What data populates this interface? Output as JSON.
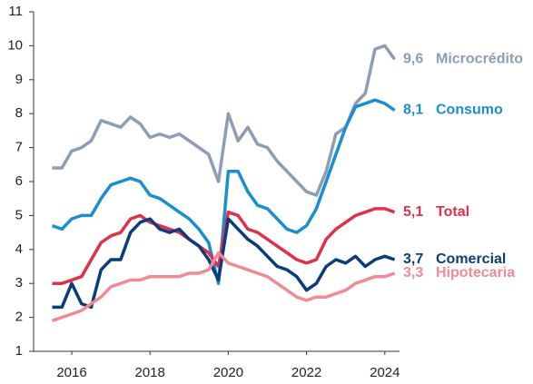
{
  "chart_data": {
    "type": "line",
    "x": [
      2015.5,
      2015.75,
      2016,
      2016.25,
      2016.5,
      2016.75,
      2017,
      2017.25,
      2017.5,
      2017.75,
      2018,
      2018.25,
      2018.5,
      2018.75,
      2019,
      2019.25,
      2019.5,
      2019.75,
      2020,
      2020.25,
      2020.5,
      2020.75,
      2021,
      2021.25,
      2021.5,
      2021.75,
      2022,
      2022.25,
      2022.5,
      2022.75,
      2023,
      2023.25,
      2023.5,
      2023.75,
      2024,
      2024.25
    ],
    "xlim": [
      2014.6,
      2024.6
    ],
    "xticks": [
      2016,
      2018,
      2020,
      2022,
      2024
    ],
    "ylim": [
      1,
      11
    ],
    "yticks": [
      1,
      2,
      3,
      4,
      5,
      6,
      7,
      8,
      9,
      10,
      11
    ],
    "series": [
      {
        "name": "Microcrédito",
        "color": "#8d9db5",
        "end_label": {
          "value": 9.6,
          "label": "9,6"
        },
        "values": [
          6.4,
          6.4,
          6.9,
          7.0,
          7.2,
          7.8,
          7.7,
          7.6,
          7.9,
          7.7,
          7.3,
          7.4,
          7.3,
          7.4,
          7.2,
          7.0,
          6.8,
          6.0,
          8.0,
          7.2,
          7.6,
          7.1,
          7.0,
          6.6,
          6.3,
          6.0,
          5.7,
          5.6,
          6.3,
          7.4,
          7.6,
          8.3,
          8.6,
          9.9,
          10.0,
          9.6
        ]
      },
      {
        "name": "Consumo",
        "color": "#1a8fcf",
        "end_label": {
          "value": 8.1,
          "label": "8,1"
        },
        "values": [
          4.7,
          4.6,
          4.9,
          5.0,
          5.0,
          5.5,
          5.9,
          6.0,
          6.1,
          6.0,
          5.6,
          5.5,
          5.3,
          5.1,
          4.9,
          4.6,
          4.2,
          3.0,
          6.3,
          6.3,
          5.7,
          5.3,
          5.2,
          4.9,
          4.6,
          4.5,
          4.7,
          5.2,
          6.0,
          6.8,
          7.6,
          8.2,
          8.3,
          8.4,
          8.3,
          8.1
        ]
      },
      {
        "name": "Total",
        "color": "#e0304a",
        "end_label": {
          "value": 5.1,
          "label": "5,1"
        },
        "values": [
          3.0,
          3.0,
          3.1,
          3.2,
          3.7,
          4.2,
          4.4,
          4.5,
          4.9,
          5.0,
          4.8,
          4.7,
          4.6,
          4.5,
          4.3,
          4.1,
          3.9,
          3.5,
          5.1,
          5.0,
          4.6,
          4.5,
          4.3,
          4.1,
          3.9,
          3.7,
          3.6,
          3.7,
          4.3,
          4.6,
          4.8,
          5.0,
          5.1,
          5.2,
          5.2,
          5.1
        ]
      },
      {
        "name": "Comercial",
        "color": "#0a3d7a",
        "end_label": {
          "value": 3.7,
          "label": "3,7"
        },
        "values": [
          2.3,
          2.3,
          3.0,
          2.4,
          2.3,
          3.4,
          3.7,
          3.7,
          4.5,
          4.8,
          4.9,
          4.6,
          4.5,
          4.6,
          4.3,
          4.1,
          3.7,
          3.1,
          4.9,
          4.6,
          4.3,
          4.1,
          3.8,
          3.5,
          3.4,
          3.2,
          2.8,
          3.0,
          3.5,
          3.7,
          3.6,
          3.8,
          3.5,
          3.7,
          3.8,
          3.7
        ]
      },
      {
        "name": "Hipotecaria",
        "color": "#f08a93",
        "end_label": {
          "value": 3.3,
          "label": "3,3"
        },
        "values": [
          1.9,
          2.0,
          2.1,
          2.2,
          2.4,
          2.6,
          2.9,
          3.0,
          3.1,
          3.1,
          3.2,
          3.2,
          3.2,
          3.2,
          3.3,
          3.3,
          3.4,
          3.9,
          3.6,
          3.5,
          3.4,
          3.3,
          3.2,
          3.0,
          2.8,
          2.6,
          2.5,
          2.6,
          2.6,
          2.7,
          2.8,
          3.0,
          3.1,
          3.2,
          3.2,
          3.3
        ]
      }
    ]
  }
}
